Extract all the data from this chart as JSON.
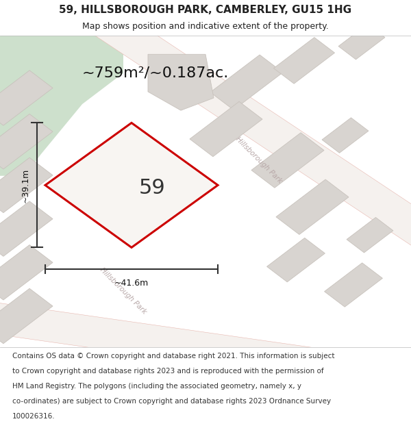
{
  "title": "59, HILLSBOROUGH PARK, CAMBERLEY, GU15 1HG",
  "subtitle": "Map shows position and indicative extent of the property.",
  "area_label": "~759m²/~0.187ac.",
  "plot_number": "59",
  "dim_height": "~39.1m",
  "dim_width": "~41.6m",
  "footer_lines": [
    "Contains OS data © Crown copyright and database right 2021. This information is subject",
    "to Crown copyright and database rights 2023 and is reproduced with the permission of",
    "HM Land Registry. The polygons (including the associated geometry, namely x, y",
    "co-ordinates) are subject to Crown copyright and database rights 2023 Ordnance Survey",
    "100026316."
  ],
  "map_bg": "#f0ece8",
  "road_color": "#e8b8b0",
  "building_color": "#d8d4d0",
  "building_edge": "#c8c2bc",
  "plot_fill": "#f8f5f2",
  "plot_edge": "#cc0000",
  "green_area": "#cde0cc",
  "dim_color": "#333333",
  "title_color": "#222222",
  "road_label_color": "#b8a8a8",
  "title_fontsize": 11,
  "subtitle_fontsize": 9,
  "area_fontsize": 16,
  "plot_num_fontsize": 22,
  "dim_fontsize": 9,
  "footer_fontsize": 7.5
}
